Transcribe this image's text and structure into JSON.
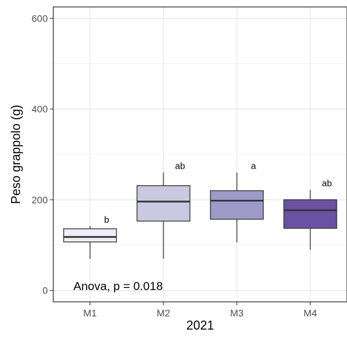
{
  "chart_data": {
    "type": "box",
    "categories": [
      "M1",
      "M2",
      "M3",
      "M4"
    ],
    "xlabel": "2021",
    "ylabel": "Peso grappolo (g)",
    "ylim": [
      -25,
      625
    ],
    "yticks": [
      0,
      200,
      400,
      600
    ],
    "grid": true,
    "boxes": [
      {
        "category": "M1",
        "min": 70,
        "q1": 107,
        "median": 118,
        "q3": 136,
        "max": 142,
        "letter": "b",
        "color": "#efedf5"
      },
      {
        "category": "M2",
        "min": 70,
        "q1": 153,
        "median": 196,
        "q3": 231,
        "max": 260,
        "letter": "ab",
        "color": "#cbc9e2"
      },
      {
        "category": "M3",
        "min": 106,
        "q1": 157,
        "median": 198,
        "q3": 220,
        "max": 260,
        "letter": "a",
        "color": "#9e9ac8"
      },
      {
        "category": "M4",
        "min": 90,
        "q1": 137,
        "median": 177,
        "q3": 200,
        "max": 222,
        "letter": "ab",
        "color": "#6a51a3"
      }
    ],
    "annotation": "Anova, p = 0.018"
  }
}
